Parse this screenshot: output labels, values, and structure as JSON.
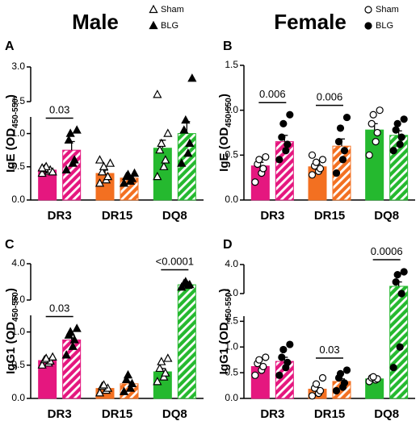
{
  "titles": [
    "Male",
    "Female"
  ],
  "chart_data": [
    {
      "type": "bar",
      "label": "A",
      "ylabel": [
        "IgE (OD",
        "450-550",
        ")"
      ],
      "categories": [
        "DR3",
        "DR15",
        "DQ8"
      ],
      "colors": [
        "#e5177f",
        "#f37021",
        "#25b92f"
      ],
      "marker": "triangle",
      "legend": true,
      "series": [
        {
          "name": "Sham",
          "values": [
            0.45,
            0.4,
            0.78
          ],
          "errors": [
            0.03,
            0.05,
            0.12
          ],
          "points": [
            [
              0.4,
              0.43,
              0.45,
              0.47,
              0.5,
              0.42,
              0.48
            ],
            [
              0.25,
              0.3,
              0.35,
              0.42,
              0.5,
              0.55,
              0.6
            ],
            [
              0.35,
              0.5,
              0.6,
              0.75,
              0.85,
              1.0,
              1.8
            ]
          ]
        },
        {
          "name": "BLG",
          "hatch": true,
          "values": [
            0.75,
            0.33,
            1.0
          ],
          "errors": [
            0.13,
            0.03,
            0.18
          ],
          "points": [
            [
              0.45,
              0.55,
              0.6,
              0.9,
              1.0,
              1.05
            ],
            [
              0.25,
              0.28,
              0.32,
              0.35,
              0.38,
              0.4
            ],
            [
              0.55,
              0.7,
              0.85,
              1.05,
              1.2,
              2.5
            ]
          ]
        }
      ],
      "segments": [
        {
          "ylim": [
            0,
            1.25
          ],
          "yticks": [
            {
              "value": 0,
              "label": "0.0"
            },
            0.5,
            {
              "value": 1,
              "label": "1.0"
            }
          ]
        },
        {
          "ylim": [
            1.5,
            3
          ],
          "yticks": [
            1.5,
            {
              "value": 3,
              "label": "3.0"
            }
          ]
        }
      ],
      "annotations": [
        "0.03",
        null,
        null
      ]
    },
    {
      "type": "bar",
      "label": "B",
      "ylabel": [
        "IgE (OD",
        "450-550",
        ")"
      ],
      "categories": [
        "DR3",
        "DR15",
        "DQ8"
      ],
      "colors": [
        "#e5177f",
        "#f37021",
        "#25b92f"
      ],
      "marker": "circle",
      "legend": true,
      "series": [
        {
          "name": "Sham",
          "values": [
            0.38,
            0.37,
            0.78
          ],
          "errors": [
            0.04,
            0.03,
            0.07
          ],
          "points": [
            [
              0.2,
              0.3,
              0.35,
              0.4,
              0.45,
              0.48
            ],
            [
              0.28,
              0.32,
              0.35,
              0.38,
              0.42,
              0.45,
              0.5
            ],
            [
              0.5,
              0.65,
              0.75,
              0.85,
              0.95,
              1.0
            ]
          ]
        },
        {
          "name": "BLG",
          "hatch": true,
          "values": [
            0.65,
            0.6,
            0.72
          ],
          "errors": [
            0.07,
            0.08,
            0.05
          ],
          "points": [
            [
              0.45,
              0.55,
              0.62,
              0.7,
              0.85,
              0.95
            ],
            [
              0.3,
              0.45,
              0.55,
              0.65,
              0.8,
              0.92
            ],
            [
              0.55,
              0.62,
              0.7,
              0.78,
              0.85,
              0.9
            ]
          ]
        }
      ],
      "segments": [
        {
          "ylim": [
            0,
            1.5
          ],
          "yticks": [
            {
              "value": 0,
              "label": "0.0"
            },
            0.5,
            {
              "value": 1,
              "label": "1.0"
            },
            1.5
          ]
        }
      ],
      "annotations": [
        "0.006",
        "0.006",
        null
      ]
    },
    {
      "type": "bar",
      "label": "C",
      "ylabel": [
        "IgG1 (OD",
        "450-550",
        ")"
      ],
      "categories": [
        "DR3",
        "DR15",
        "DQ8"
      ],
      "colors": [
        "#e5177f",
        "#f37021",
        "#25b92f"
      ],
      "marker": "triangle",
      "series": [
        {
          "values": [
            0.57,
            0.15,
            0.4
          ],
          "errors": [
            0.03,
            0.02,
            0.05
          ],
          "points": [
            [
              0.5,
              0.53,
              0.56,
              0.58,
              0.6,
              0.62
            ],
            [
              0.08,
              0.12,
              0.15,
              0.18,
              0.2
            ],
            [
              0.25,
              0.32,
              0.38,
              0.45,
              0.55,
              0.6
            ]
          ]
        },
        {
          "hatch": true,
          "values": [
            0.88,
            0.22,
            3.42
          ],
          "errors": [
            0.07,
            0.03,
            0.03
          ],
          "points": [
            [
              0.65,
              0.78,
              0.88,
              0.95,
              1.0,
              1.05
            ],
            [
              0.1,
              0.15,
              0.22,
              0.28,
              0.35
            ],
            [
              3.35,
              3.4,
              3.42,
              3.45,
              3.5
            ]
          ]
        }
      ],
      "segments": [
        {
          "ylim": [
            0,
            1.25
          ],
          "yticks": [
            {
              "value": 0,
              "label": "0.0"
            },
            0.5,
            {
              "value": 1,
              "label": "1.0"
            }
          ]
        },
        {
          "ylim": [
            3,
            4
          ],
          "yticks": [
            {
              "value": 3,
              "label": "3.0"
            },
            {
              "value": 4,
              "label": "4.0"
            }
          ]
        }
      ],
      "annotations": [
        "0.03",
        null,
        "<0.0001"
      ]
    },
    {
      "type": "bar",
      "label": "D",
      "ylabel": [
        "IgG1 (OD",
        "450-550",
        ")"
      ],
      "categories": [
        "DR3",
        "DR15",
        "DQ8"
      ],
      "colors": [
        "#e5177f",
        "#f37021",
        "#25b92f"
      ],
      "marker": "circle",
      "series": [
        {
          "values": [
            0.62,
            0.18,
            0.38
          ],
          "errors": [
            0.05,
            0.03,
            0.02
          ],
          "points": [
            [
              0.45,
              0.55,
              0.62,
              0.68,
              0.75,
              0.8
            ],
            [
              0.05,
              0.1,
              0.15,
              0.2,
              0.28,
              0.4
            ],
            [
              0.33,
              0.36,
              0.38,
              0.4,
              0.42
            ]
          ]
        },
        {
          "hatch": true,
          "values": [
            0.72,
            0.33,
            2.5
          ],
          "errors": [
            0.08,
            0.05,
            0.3
          ],
          "points": [
            [
              0.45,
              0.6,
              0.7,
              0.8,
              0.95,
              1.05
            ],
            [
              0.15,
              0.22,
              0.3,
              0.4,
              0.48,
              0.55
            ],
            [
              0.6,
              1.0,
              2.0,
              2.8,
              3.3,
              3.5
            ]
          ]
        }
      ],
      "segments": [
        {
          "ylim": [
            0,
            1.6
          ],
          "yticks": [
            {
              "value": 0,
              "label": "0.0"
            },
            0.5,
            {
              "value": 1,
              "label": "1.0"
            },
            1.5
          ]
        },
        {
          "ylim": [
            2,
            4
          ],
          "yticks": [
            {
              "value": 2,
              "label": "2.0"
            },
            {
              "value": 4,
              "label": "4.0"
            }
          ]
        }
      ],
      "annotations": [
        null,
        "0.03",
        "0.0006"
      ]
    }
  ]
}
